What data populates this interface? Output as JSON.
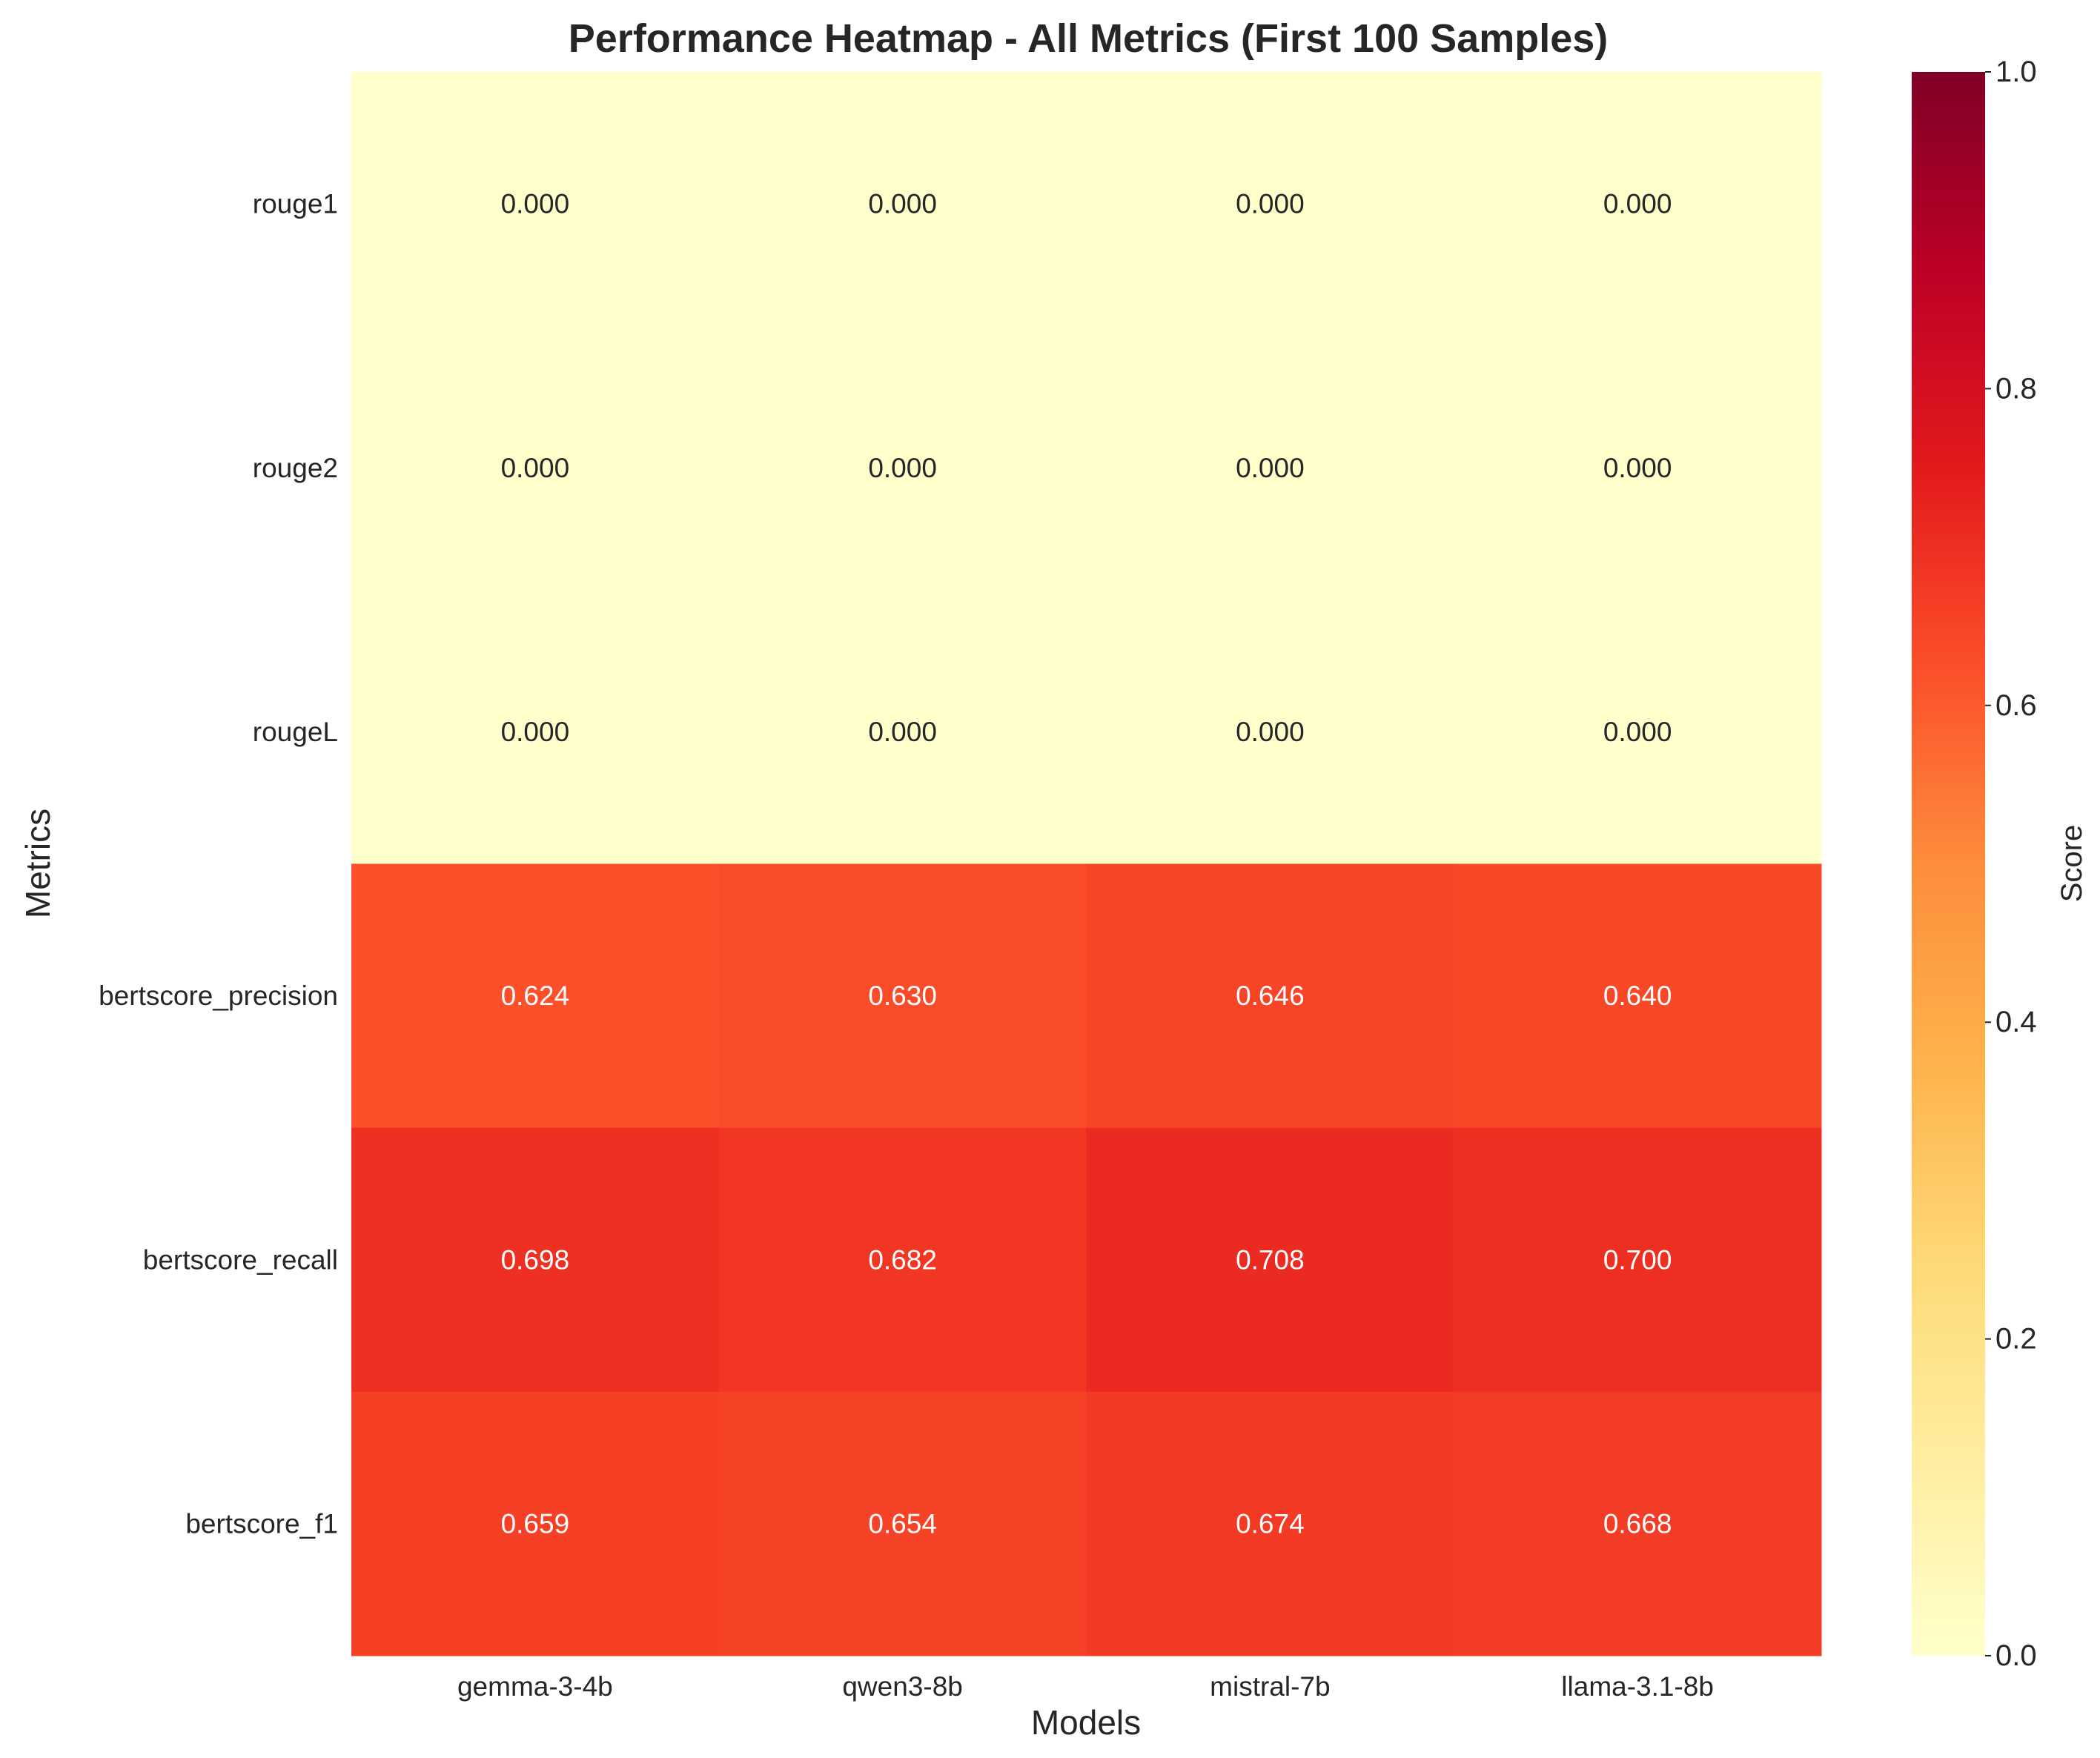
{
  "chart_data": {
    "type": "heatmap",
    "title": "Performance Heatmap - All Metrics (First 100 Samples)",
    "xlabel": "Models",
    "ylabel": "Metrics",
    "x_categories": [
      "gemma-3-4b",
      "qwen3-8b",
      "mistral-7b",
      "llama-3.1-8b"
    ],
    "y_categories": [
      "rouge1",
      "rouge2",
      "rougeL",
      "bertscore_precision",
      "bertscore_recall",
      "bertscore_f1"
    ],
    "values": [
      [
        0.0,
        0.0,
        0.0,
        0.0
      ],
      [
        0.0,
        0.0,
        0.0,
        0.0
      ],
      [
        0.0,
        0.0,
        0.0,
        0.0
      ],
      [
        0.624,
        0.63,
        0.646,
        0.64
      ],
      [
        0.698,
        0.682,
        0.708,
        0.7
      ],
      [
        0.659,
        0.654,
        0.674,
        0.668
      ]
    ],
    "value_labels": [
      [
        "0.000",
        "0.000",
        "0.000",
        "0.000"
      ],
      [
        "0.000",
        "0.000",
        "0.000",
        "0.000"
      ],
      [
        "0.000",
        "0.000",
        "0.000",
        "0.000"
      ],
      [
        "0.624",
        "0.630",
        "0.646",
        "0.640"
      ],
      [
        "0.698",
        "0.682",
        "0.708",
        "0.700"
      ],
      [
        "0.659",
        "0.654",
        "0.674",
        "0.668"
      ]
    ],
    "colormap": "YlOrRd",
    "color_range": [
      0,
      1
    ],
    "colorbar": {
      "label": "Score",
      "ticks": [
        "0.0",
        "0.2",
        "0.4",
        "0.6",
        "0.8",
        "1.0"
      ],
      "tick_values": [
        0,
        0.2,
        0.4,
        0.6,
        0.8,
        1.0
      ]
    },
    "grid": false
  }
}
